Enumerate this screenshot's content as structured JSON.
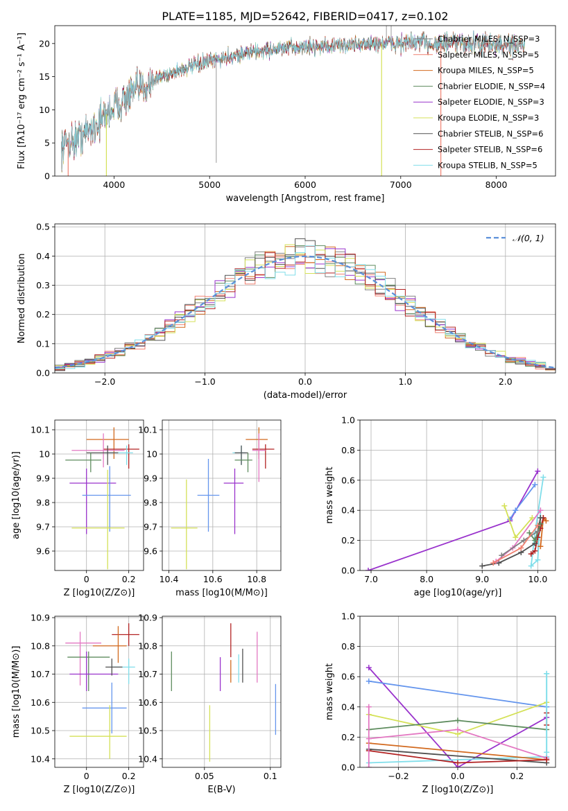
{
  "figure_title": "PLATE=1185, MJD=52642, FIBERID=0417, z=0.102",
  "colors": {
    "Chabrier MILES": "#808080",
    "Salpeter MILES": "#f08070",
    "Kroupa MILES": "#d2691e",
    "Chabrier ELODIE": "#5e8c5e",
    "Salpeter ELODIE": "#9932cc",
    "Kroupa ELODIE": "#d4e157",
    "Chabrier STELIB": "#505050",
    "Salpeter STELIB": "#b22222",
    "Kroupa STELIB": "#80deea",
    "extra_pink": "#e377c2",
    "extra_blue": "#6495ed",
    "gauss": "#5b8fd9"
  },
  "chart_data": [
    {
      "id": "spectrum",
      "type": "line",
      "title": "PLATE=1185, MJD=52642, FIBERID=0417, z=0.102",
      "xlabel": "wavelength [Angstrom, rest frame]",
      "ylabel": "Flux [fλ10⁻¹⁷ erg cm⁻² s⁻¹ A⁻¹]",
      "xlim": [
        3380,
        8620
      ],
      "ylim": [
        0,
        22.7
      ],
      "xticks": [
        4000,
        5000,
        6000,
        7000,
        8000
      ],
      "yticks": [
        0,
        5,
        10,
        15,
        20
      ],
      "grid": false,
      "legend_position": "upper-right",
      "continuum": {
        "x": [
          3450,
          3500,
          3600,
          3700,
          3800,
          3900,
          4000,
          4100,
          4200,
          4300,
          4400,
          4500,
          4600,
          4800,
          5000,
          5200,
          5400,
          5600,
          5800,
          6000,
          6200,
          6400,
          6600,
          6800,
          7000,
          7200,
          7400,
          7600,
          7800,
          8000,
          8200,
          8300
        ],
        "y": [
          4.5,
          5.0,
          5.5,
          6.5,
          7.5,
          9.0,
          10.5,
          11.5,
          12.5,
          13.5,
          14.3,
          15.0,
          15.6,
          16.5,
          17.3,
          18.0,
          18.6,
          19.0,
          19.3,
          19.5,
          19.6,
          19.7,
          19.9,
          20.0,
          20.1,
          20.1,
          20.0,
          20.0,
          19.9,
          19.8,
          19.7,
          19.6
        ]
      },
      "series": [
        {
          "name": "Chabrier MILES",
          "legend": "Chabrier MILES, N_SSP=3"
        },
        {
          "name": "Salpeter MILES",
          "legend": "Salpeter MILES, N_SSP=5"
        },
        {
          "name": "Kroupa MILES",
          "legend": "Kroupa MILES, N_SSP=5"
        },
        {
          "name": "Chabrier ELODIE",
          "legend": "Chabrier ELODIE, N_SSP=4"
        },
        {
          "name": "Salpeter ELODIE",
          "legend": "Salpeter ELODIE, N_SSP=3"
        },
        {
          "name": "Kroupa ELODIE",
          "legend": "Kroupa ELODIE, N_SSP=3"
        },
        {
          "name": "Chabrier STELIB",
          "legend": "Chabrier STELIB, N_SSP=6"
        },
        {
          "name": "Salpeter STELIB",
          "legend": "Salpeter STELIB, N_SSP=6"
        },
        {
          "name": "Kroupa STELIB",
          "legend": "Kroupa STELIB, N_SSP=5"
        }
      ],
      "drops": [
        {
          "x": 3520,
          "series": "Salpeter MILES"
        },
        {
          "x": 3920,
          "series": "Kroupa ELODIE"
        },
        {
          "x": 6800,
          "series": "Kroupa ELODIE"
        },
        {
          "x": 7420,
          "series": "Salpeter MILES"
        }
      ]
    },
    {
      "id": "residuals",
      "type": "line",
      "xlabel": "(data-model)/error",
      "ylabel": "Normed distribution",
      "xlim": [
        -2.5,
        2.5
      ],
      "ylim": [
        0,
        0.51
      ],
      "xticks": [
        -2,
        -1,
        0,
        1,
        2
      ],
      "yticks": [
        0.0,
        0.1,
        0.2,
        0.3,
        0.4,
        0.5
      ],
      "grid": true,
      "legend": "𝒩(0, 1)",
      "legend_position": "upper-right",
      "gaussian": {
        "mu": 0,
        "sigma": 1,
        "color": "#5b8fd9"
      },
      "bin_width": 0.1,
      "bin_start": -2.5
    },
    {
      "id": "age_vs_Z",
      "type": "scatter",
      "xlabel": "Z [log10(Z/Z⊙)]",
      "ylabel": "age  [log10(age/yr)]",
      "xlim": [
        -0.15,
        0.27
      ],
      "ylim": [
        9.52,
        10.14
      ],
      "xticks": [
        0.0,
        0.2
      ],
      "yticks": [
        9.6,
        9.7,
        9.8,
        9.9,
        10.0,
        10.1
      ],
      "grid": true,
      "points": [
        {
          "x": 0.13,
          "y": 10.06,
          "xerr": [
            0.13,
            0.07
          ],
          "yerr": [
            0.08,
            0.05
          ],
          "color": "#d2691e"
        },
        {
          "x": 0.2,
          "y": 10.02,
          "xerr": [
            0.12,
            0.05
          ],
          "yerr": [
            0.08,
            0.02
          ],
          "color": "#b22222"
        },
        {
          "x": 0.08,
          "y": 10.015,
          "xerr": [
            0.15,
            0.1
          ],
          "yerr": [
            0.07,
            0.07
          ],
          "color": "#e377c2"
        },
        {
          "x": 0.19,
          "y": 10.005,
          "xerr": [
            0.1,
            0.03
          ],
          "yerr": [
            0.05,
            0.03
          ],
          "color": "#80deea"
        },
        {
          "x": 0.1,
          "y": 10.005,
          "xerr": [
            0.1,
            0.05
          ],
          "yerr": [
            0.05,
            0.03
          ],
          "color": "#505050"
        },
        {
          "x": 0.02,
          "y": 9.975,
          "xerr": [
            0.12,
            0.05
          ],
          "yerr": [
            0.05,
            0.03
          ],
          "color": "#5e8c5e"
        },
        {
          "x": 0.0,
          "y": 9.88,
          "xerr": [
            0.08,
            0.14
          ],
          "yerr": [
            0.21,
            0.06
          ],
          "color": "#9932cc"
        },
        {
          "x": 0.11,
          "y": 9.83,
          "xerr": [
            0.13,
            0.1
          ],
          "yerr": [
            0.15,
            0.12
          ],
          "color": "#6495ed"
        },
        {
          "x": 0.1,
          "y": 9.695,
          "xerr": [
            0.17,
            0.08
          ],
          "yerr": [
            0.17,
            0.24
          ],
          "color": "#d4e157"
        }
      ]
    },
    {
      "id": "age_vs_mass",
      "type": "scatter",
      "xlabel": "mass [log10(M/M⊙)]",
      "ylabel": "",
      "xlim": [
        10.37,
        10.91
      ],
      "ylim": [
        9.52,
        10.14
      ],
      "xticks": [
        10.4,
        10.6,
        10.8
      ],
      "yticks": [
        9.6,
        9.7,
        9.8,
        9.9,
        10.0,
        10.1
      ],
      "grid": true,
      "points": [
        {
          "x": 10.81,
          "y": 10.06,
          "xerr": [
            0.06,
            0.04
          ],
          "yerr": [
            0.08,
            0.05
          ],
          "color": "#d2691e"
        },
        {
          "x": 10.84,
          "y": 10.02,
          "xerr": [
            0.06,
            0.04
          ],
          "yerr": [
            0.08,
            0.02
          ],
          "color": "#b22222"
        },
        {
          "x": 10.81,
          "y": 10.015,
          "xerr": [
            0.03,
            0.03
          ],
          "yerr": [
            0.13,
            0.07
          ],
          "color": "#e377c2"
        },
        {
          "x": 10.73,
          "y": 10.005,
          "xerr": [
            0.04,
            0.02
          ],
          "yerr": [
            0.05,
            0.03
          ],
          "color": "#80deea"
        },
        {
          "x": 10.73,
          "y": 10.005,
          "xerr": [
            0.03,
            0.03
          ],
          "yerr": [
            0.05,
            0.03
          ],
          "color": "#505050"
        },
        {
          "x": 10.76,
          "y": 9.975,
          "xerr": [
            0.06,
            0.02
          ],
          "yerr": [
            0.05,
            0.03
          ],
          "color": "#5e8c5e"
        },
        {
          "x": 10.7,
          "y": 9.88,
          "xerr": [
            0.05,
            0.04
          ],
          "yerr": [
            0.21,
            0.06
          ],
          "color": "#9932cc"
        },
        {
          "x": 10.58,
          "y": 9.83,
          "xerr": [
            0.05,
            0.05
          ],
          "yerr": [
            0.15,
            0.15
          ],
          "color": "#6495ed"
        },
        {
          "x": 10.48,
          "y": 9.695,
          "xerr": [
            0.07,
            0.05
          ],
          "yerr": [
            0.17,
            0.2
          ],
          "color": "#d4e157"
        }
      ]
    },
    {
      "id": "weight_vs_age",
      "type": "line",
      "xlabel": "age  [log10(age/yr)]",
      "ylabel": "mass weight",
      "xlim": [
        6.8,
        10.32
      ],
      "ylim": [
        0,
        1.0
      ],
      "xticks": [
        7,
        8,
        9,
        10
      ],
      "yticks": [
        0.0,
        0.2,
        0.4,
        0.6,
        0.8,
        1.0
      ],
      "grid": true,
      "series": [
        {
          "color": "#9932cc",
          "x": [
            6.95,
            9.5,
            10.0
          ],
          "y": [
            0.0,
            0.33,
            0.66
          ]
        },
        {
          "color": "#6495ed",
          "x": [
            9.5,
            9.6,
            9.95
          ],
          "y": [
            0.34,
            0.4,
            0.57
          ]
        },
        {
          "color": "#d4e157",
          "x": [
            9.4,
            9.6,
            9.9
          ],
          "y": [
            0.43,
            0.22,
            0.35
          ]
        },
        {
          "color": "#80deea",
          "x": [
            10.1,
            9.95,
            9.88,
            10.0,
            10.05
          ],
          "y": [
            0.62,
            0.25,
            0.03,
            0.07,
            0.4
          ]
        },
        {
          "color": "#d2691e",
          "x": [
            10.05,
            10.1,
            10.15
          ],
          "y": [
            0.16,
            0.35,
            0.33
          ]
        },
        {
          "color": "#b22222",
          "x": [
            9.88,
            9.95,
            10.0,
            10.05,
            10.1
          ],
          "y": [
            0.11,
            0.13,
            0.22,
            0.28,
            0.35
          ]
        },
        {
          "color": "#505050",
          "x": [
            9.0,
            9.3,
            9.7,
            9.95,
            10.05
          ],
          "y": [
            0.03,
            0.05,
            0.12,
            0.18,
            0.35
          ]
        },
        {
          "color": "#5e8c5e",
          "x": [
            9.85,
            9.95,
            10.05
          ],
          "y": [
            0.25,
            0.2,
            0.31
          ]
        },
        {
          "color": "#e377c2",
          "x": [
            9.25,
            9.55,
            10.05
          ],
          "y": [
            0.06,
            0.15,
            0.4
          ]
        },
        {
          "color": "#808080",
          "x": [
            9.35,
            9.75,
            10.0
          ],
          "y": [
            0.1,
            0.2,
            0.26
          ]
        },
        {
          "color": "#f08070",
          "x": [
            9.2,
            9.7,
            10.0
          ],
          "y": [
            0.05,
            0.15,
            0.3
          ]
        }
      ]
    },
    {
      "id": "mass_vs_Z",
      "type": "scatter",
      "xlabel": "Z [log10(Z/Z⊙)]",
      "ylabel": "mass [log10(M/M⊙)]",
      "xlim": [
        -0.15,
        0.27
      ],
      "ylim": [
        10.37,
        10.905
      ],
      "xticks": [
        0.0,
        0.2
      ],
      "yticks": [
        10.4,
        10.5,
        10.6,
        10.7,
        10.8,
        10.9
      ],
      "grid": true,
      "points": [
        {
          "x": 0.2,
          "y": 10.84,
          "xerr": [
            0.08,
            0.05
          ],
          "yerr": [
            0.04,
            0.04
          ],
          "color": "#b22222"
        },
        {
          "x": 0.15,
          "y": 10.8,
          "xerr": [
            0.12,
            0.04
          ],
          "yerr": [
            0.06,
            0.07
          ],
          "color": "#d2691e"
        },
        {
          "x": -0.03,
          "y": 10.81,
          "xerr": [
            0.07,
            0.1
          ],
          "yerr": [
            0.15,
            0.04
          ],
          "color": "#e377c2"
        },
        {
          "x": 0.01,
          "y": 10.76,
          "xerr": [
            0.1,
            0.1
          ],
          "yerr": [
            0.12,
            0.02
          ],
          "color": "#5e8c5e"
        },
        {
          "x": 0.2,
          "y": 10.725,
          "xerr": [
            0.08,
            0.03
          ],
          "yerr": [
            0.06,
            0.03
          ],
          "color": "#80deea"
        },
        {
          "x": 0.0,
          "y": 10.7,
          "xerr": [
            0.08,
            0.15
          ],
          "yerr": [
            0.06,
            0.08
          ],
          "color": "#9932cc"
        },
        {
          "x": 0.12,
          "y": 10.725,
          "xerr": [
            0.03,
            0.05
          ],
          "yerr": [
            0.03,
            0.03
          ],
          "color": "#505050"
        },
        {
          "x": 0.12,
          "y": 10.58,
          "xerr": [
            0.14,
            0.07
          ],
          "yerr": [
            0.09,
            0.09
          ],
          "color": "#6495ed"
        },
        {
          "x": 0.11,
          "y": 10.48,
          "xerr": [
            0.19,
            0.08
          ],
          "yerr": [
            0.08,
            0.11
          ],
          "color": "#d4e157"
        }
      ]
    },
    {
      "id": "mass_vs_ebv",
      "type": "scatter",
      "xlabel": "E(B-V)",
      "ylabel": "",
      "xlim": [
        0.018,
        0.108
      ],
      "ylim": [
        10.37,
        10.905
      ],
      "xticks": [
        0.05,
        0.1
      ],
      "yticks": [
        10.4,
        10.5,
        10.6,
        10.7,
        10.8,
        10.9
      ],
      "grid": true,
      "points": [
        {
          "x": 0.025,
          "y": 10.71,
          "xerr": [
            0,
            0
          ],
          "yerr": [
            0.07,
            0.07
          ],
          "color": "#5e8c5e"
        },
        {
          "x": 0.054,
          "y": 10.49,
          "xerr": [
            0,
            0
          ],
          "yerr": [
            0.1,
            0.1
          ],
          "color": "#d4e157"
        },
        {
          "x": 0.062,
          "y": 10.7,
          "xerr": [
            0,
            0
          ],
          "yerr": [
            0.06,
            0.06
          ],
          "color": "#9932cc"
        },
        {
          "x": 0.07,
          "y": 10.71,
          "xerr": [
            0,
            0
          ],
          "yerr": [
            0.04,
            0.04
          ],
          "color": "#d2691e"
        },
        {
          "x": 0.07,
          "y": 10.82,
          "xerr": [
            0,
            0
          ],
          "yerr": [
            0.06,
            0.06
          ],
          "color": "#b22222"
        },
        {
          "x": 0.076,
          "y": 10.72,
          "xerr": [
            0,
            0
          ],
          "yerr": [
            0.05,
            0.05
          ],
          "color": "#80deea"
        },
        {
          "x": 0.079,
          "y": 10.73,
          "xerr": [
            0,
            0
          ],
          "yerr": [
            0.06,
            0.06
          ],
          "color": "#505050"
        },
        {
          "x": 0.09,
          "y": 10.76,
          "xerr": [
            0,
            0
          ],
          "yerr": [
            0.09,
            0.09
          ],
          "color": "#e377c2"
        },
        {
          "x": 0.104,
          "y": 10.575,
          "xerr": [
            0,
            0
          ],
          "yerr": [
            0.09,
            0.09
          ],
          "color": "#6495ed"
        }
      ]
    },
    {
      "id": "weight_vs_Z",
      "type": "line",
      "xlabel": "Z [log10(Z/Z⊙)]",
      "ylabel": "mass weight",
      "xlim": [
        -0.33,
        0.33
      ],
      "ylim": [
        0,
        1.0
      ],
      "xticks": [
        -0.2,
        0.0,
        0.2
      ],
      "yticks": [
        0.0,
        0.2,
        0.4,
        0.6,
        0.8,
        1.0
      ],
      "grid": true,
      "series": [
        {
          "color": "#9932cc",
          "x": [
            -0.3,
            0.0,
            0.3
          ],
          "y": [
            0.66,
            0.0,
            0.33
          ]
        },
        {
          "color": "#6495ed",
          "x": [
            -0.3,
            0.3
          ],
          "y": [
            0.57,
            0.4
          ]
        },
        {
          "color": "#d4e157",
          "x": [
            -0.3,
            0.0,
            0.3
          ],
          "y": [
            0.35,
            0.22,
            0.43
          ]
        },
        {
          "color": "#80deea",
          "x": [
            -0.3,
            0.3,
            0.3
          ],
          "y": [
            0.03,
            0.07,
            0.62
          ]
        },
        {
          "color": "#5e8c5e",
          "x": [
            -0.3,
            0.0,
            0.3
          ],
          "y": [
            0.25,
            0.31,
            0.25
          ]
        },
        {
          "color": "#e377c2",
          "x": [
            -0.3,
            0.0,
            0.3
          ],
          "y": [
            0.19,
            0.25,
            0.06
          ]
        },
        {
          "color": "#d2691e",
          "x": [
            -0.3,
            0.3
          ],
          "y": [
            0.16,
            0.05
          ]
        },
        {
          "color": "#505050",
          "x": [
            -0.3,
            0.3
          ],
          "y": [
            0.12,
            0.03
          ]
        },
        {
          "color": "#b22222",
          "x": [
            -0.3,
            0.0,
            0.3
          ],
          "y": [
            0.11,
            0.03,
            0.05
          ]
        },
        {
          "color": "#e377c2",
          "x": [
            -0.3,
            -0.3
          ],
          "y": [
            0.0,
            0.4
          ]
        },
        {
          "color": "#b22222",
          "x": [
            0.3,
            0.3
          ],
          "y": [
            0.28,
            0.36
          ]
        },
        {
          "color": "#80deea",
          "x": [
            0.3,
            0.3
          ],
          "y": [
            0.1,
            0.62
          ]
        }
      ]
    }
  ]
}
